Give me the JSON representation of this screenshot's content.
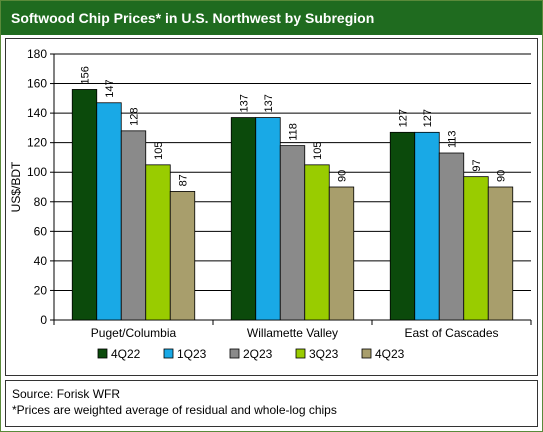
{
  "title": "Softwood Chip Prices* in U.S. Northwest by Subregion",
  "source_line": "Source: Forisk WFR",
  "footnote_line": "*Prices are weighted average of residual and whole-log chips",
  "chart_data": {
    "type": "bar",
    "title": "Softwood Chip Prices* in U.S. Northwest by Subregion",
    "xlabel": "",
    "ylabel": "US$/BDT",
    "ylim": [
      0,
      180
    ],
    "yticks": [
      0,
      20,
      40,
      60,
      80,
      100,
      120,
      140,
      160,
      180
    ],
    "grid": true,
    "legend_placement": "bottom",
    "categories": [
      "Puget/Columbia",
      "Willamette Valley",
      "East of Cascades"
    ],
    "series": [
      {
        "name": "4Q22",
        "color": "#0b4a0b",
        "values": [
          156,
          137,
          127
        ]
      },
      {
        "name": "1Q23",
        "color": "#19a9e6",
        "values": [
          147,
          137,
          127
        ]
      },
      {
        "name": "2Q23",
        "color": "#8a8a8a",
        "values": [
          128,
          118,
          113
        ]
      },
      {
        "name": "3Q23",
        "color": "#99cc00",
        "values": [
          105,
          105,
          97
        ]
      },
      {
        "name": "4Q23",
        "color": "#a89e6c",
        "values": [
          87,
          90,
          90
        ]
      }
    ]
  }
}
